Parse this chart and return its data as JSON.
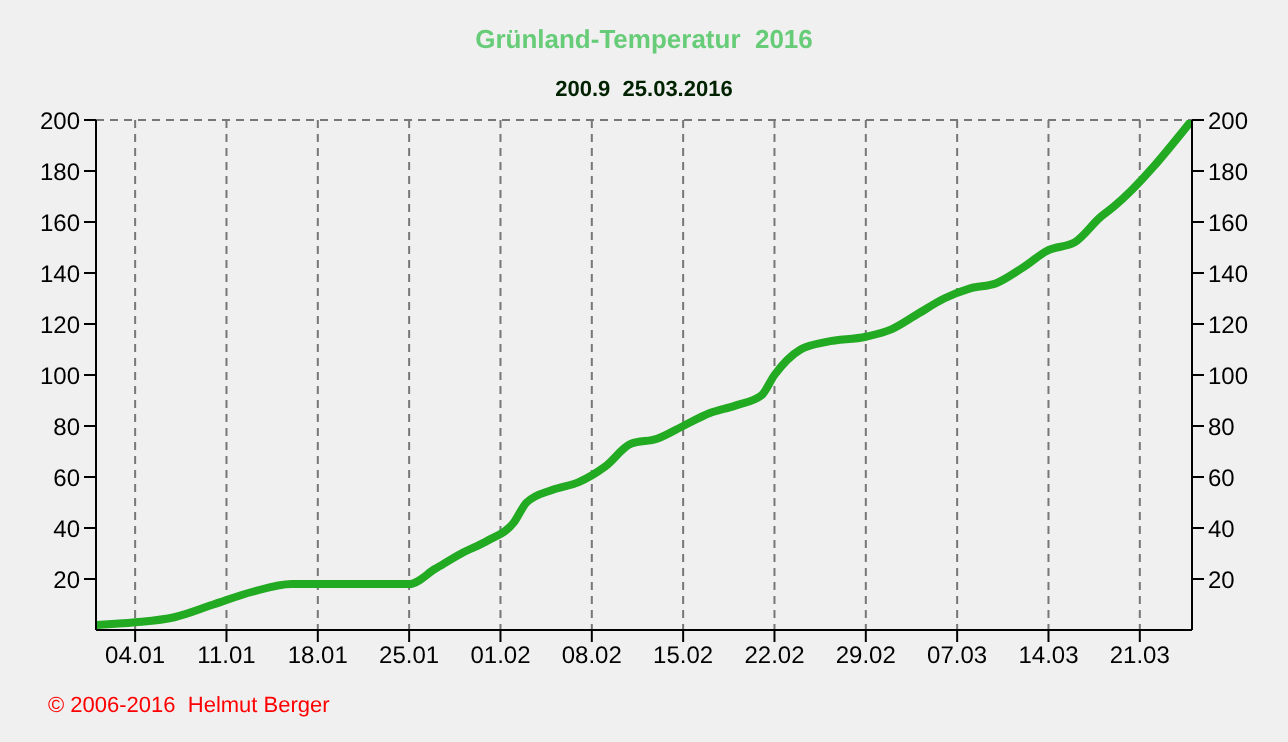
{
  "chart_data": {
    "type": "line",
    "title": "Grünland-Temperatur  2016",
    "subtitle": "200.9  25.03.2016",
    "annotations": [
      "© 2006-2016  Helmut Berger"
    ],
    "x": [
      "2016-01-01",
      "2016-01-04",
      "2016-01-07",
      "2016-01-10",
      "2016-01-13",
      "2016-01-16",
      "2016-01-19",
      "2016-01-22",
      "2016-01-25",
      "2016-01-27",
      "2016-01-29",
      "2016-01-31",
      "2016-02-02",
      "2016-02-03",
      "2016-02-05",
      "2016-02-07",
      "2016-02-09",
      "2016-02-11",
      "2016-02-13",
      "2016-02-15",
      "2016-02-17",
      "2016-02-19",
      "2016-02-21",
      "2016-02-22",
      "2016-02-24",
      "2016-02-26",
      "2016-02-29",
      "2016-03-02",
      "2016-03-04",
      "2016-03-06",
      "2016-03-08",
      "2016-03-10",
      "2016-03-12",
      "2016-03-14",
      "2016-03-16",
      "2016-03-18",
      "2016-03-19",
      "2016-03-25"
    ],
    "series": [
      {
        "color": "#22aa22",
        "values": [
          2,
          3,
          5,
          10,
          15,
          18,
          18,
          18,
          18,
          24,
          30,
          35,
          42,
          50,
          55,
          58,
          64,
          73,
          75,
          80,
          85,
          88,
          92,
          100,
          110,
          113,
          115,
          118,
          124,
          130,
          134,
          136,
          142,
          149,
          152,
          162,
          166,
          200
        ]
      }
    ],
    "xlim": [
      "2016-01-01",
      "2016-03-25"
    ],
    "xticks": [
      {
        "value": "2016-01-04",
        "label": "04.01"
      },
      {
        "value": "2016-01-11",
        "label": "11.01"
      },
      {
        "value": "2016-01-18",
        "label": "18.01"
      },
      {
        "value": "2016-01-25",
        "label": "25.01"
      },
      {
        "value": "2016-02-01",
        "label": "01.02"
      },
      {
        "value": "2016-02-08",
        "label": "08.02"
      },
      {
        "value": "2016-02-15",
        "label": "15.02"
      },
      {
        "value": "2016-02-22",
        "label": "22.02"
      },
      {
        "value": "2016-02-29",
        "label": "29.02"
      },
      {
        "value": "2016-03-07",
        "label": "07.03"
      },
      {
        "value": "2016-03-14",
        "label": "14.03"
      },
      {
        "value": "2016-03-21",
        "label": "21.03"
      }
    ],
    "ylim": [
      0,
      200
    ],
    "yticks": [
      20,
      40,
      60,
      80,
      100,
      120,
      140,
      160,
      180,
      200
    ],
    "y2lim": [
      0,
      200
    ],
    "y2ticks": [
      20,
      40,
      60,
      80,
      100,
      120,
      140,
      160,
      180,
      200
    ],
    "grid": true,
    "marker": "none",
    "line_style": "solid",
    "legend": false
  }
}
